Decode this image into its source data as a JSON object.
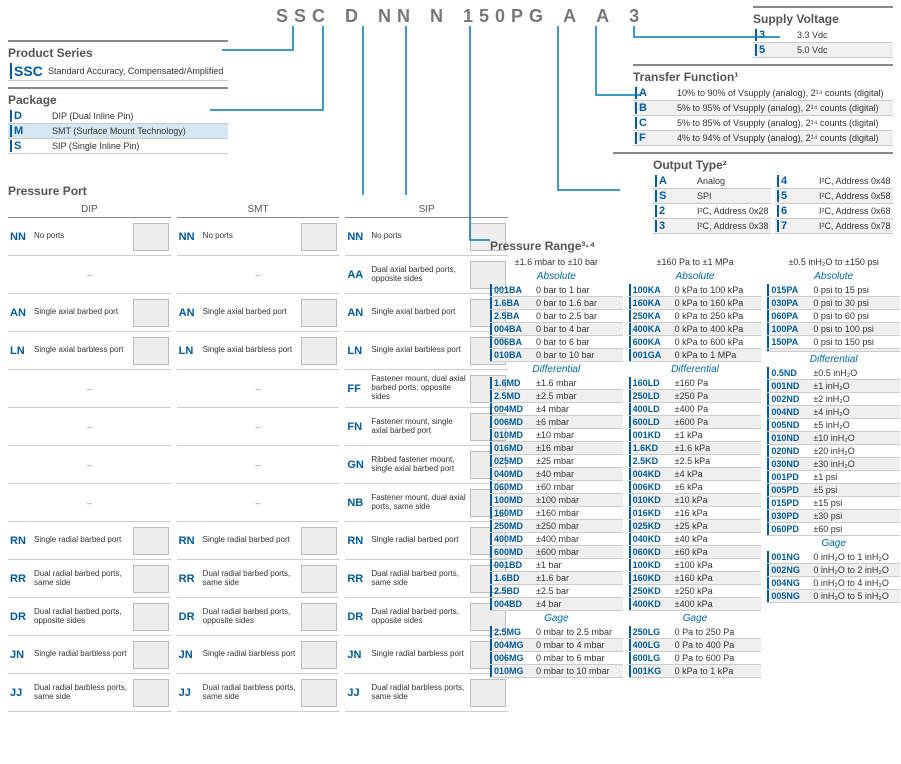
{
  "partNumberSegments": [
    "SSC",
    "D",
    "NN",
    "N",
    "150PG",
    "A",
    "A",
    "3"
  ],
  "supplyVoltage": {
    "title": "Supply Voltage",
    "rows": [
      {
        "code": "3",
        "desc": "3.3 Vdc"
      },
      {
        "code": "5",
        "desc": "5.0 Vdc"
      }
    ]
  },
  "productSeries": {
    "title": "Product Series",
    "rows": [
      {
        "code": "SSC",
        "desc": "Standard Accuracy, Compensated/Amplified"
      }
    ]
  },
  "package": {
    "title": "Package",
    "rows": [
      {
        "code": "D",
        "desc": "DIP (Dual Inline Pin)"
      },
      {
        "code": "M",
        "desc": "SMT (Surface Mount Technology)",
        "hl": true
      },
      {
        "code": "S",
        "desc": "SIP (Single Inline Pin)"
      }
    ]
  },
  "transferFunction": {
    "title": "Transfer Function¹",
    "rows": [
      {
        "code": "A",
        "desc": "10% to 90% of Vsupply (analog), 2¹⁴ counts (digital)"
      },
      {
        "code": "B",
        "desc": "5% to 95% of Vsupply (analog), 2¹⁴ counts (digital)"
      },
      {
        "code": "C",
        "desc": "5% to 85% of Vsupply (analog), 2¹⁴ counts (digital)"
      },
      {
        "code": "F",
        "desc": "4% to 94% of Vsupply (analog), 2¹⁴ counts (digital)"
      }
    ]
  },
  "outputType": {
    "title": "Output Type²",
    "left": [
      {
        "code": "A",
        "desc": "Analog"
      },
      {
        "code": "S",
        "desc": "SPI"
      },
      {
        "code": "2",
        "desc": "I²C, Address 0x28"
      },
      {
        "code": "3",
        "desc": "I²C, Address 0x38"
      }
    ],
    "right": [
      {
        "code": "4",
        "desc": "I²C, Address 0x48"
      },
      {
        "code": "5",
        "desc": "I²C, Address 0x58"
      },
      {
        "code": "6",
        "desc": "I²C, Address 0x68"
      },
      {
        "code": "7",
        "desc": "I²C, Address 0x78"
      }
    ]
  },
  "pressurePort": {
    "title": "Pressure Port",
    "colHeaders": [
      "DIP",
      "SMT",
      "SIP"
    ],
    "rows": [
      {
        "dip": {
          "code": "NN",
          "desc": "No ports"
        },
        "smt": {
          "code": "NN",
          "desc": "No ports"
        },
        "sip": {
          "code": "NN",
          "desc": "No ports"
        }
      },
      {
        "dip": null,
        "smt": null,
        "sip": {
          "code": "AA",
          "desc": "Dual axial barbed ports, opposite sides"
        }
      },
      {
        "dip": {
          "code": "AN",
          "desc": "Single axial barbed port"
        },
        "smt": {
          "code": "AN",
          "desc": "Single axial barbed port"
        },
        "sip": {
          "code": "AN",
          "desc": "Single axial barbed port"
        }
      },
      {
        "dip": {
          "code": "LN",
          "desc": "Single axial barbless port"
        },
        "smt": {
          "code": "LN",
          "desc": "Single axial barbless port"
        },
        "sip": {
          "code": "LN",
          "desc": "Single axial barbless port"
        }
      },
      {
        "dip": null,
        "smt": null,
        "sip": {
          "code": "FF",
          "desc": "Fastener mount, dual axial barbed ports, opposite sides"
        }
      },
      {
        "dip": null,
        "smt": null,
        "sip": {
          "code": "FN",
          "desc": "Fastener mount, single axial barbed port"
        }
      },
      {
        "dip": null,
        "smt": null,
        "sip": {
          "code": "GN",
          "desc": "Ribbed fastener mount, single axial barbed port"
        }
      },
      {
        "dip": null,
        "smt": null,
        "sip": {
          "code": "NB",
          "desc": "Fastener mount, dual axial ports, same side"
        }
      },
      {
        "dip": {
          "code": "RN",
          "desc": "Single radial barbed port"
        },
        "smt": {
          "code": "RN",
          "desc": "Single radial barbed port"
        },
        "sip": {
          "code": "RN",
          "desc": "Single radial barbed port"
        }
      },
      {
        "dip": {
          "code": "RR",
          "desc": "Dual radial barbed ports, same side"
        },
        "smt": {
          "code": "RR",
          "desc": "Dual radial barbed ports, same side"
        },
        "sip": {
          "code": "RR",
          "desc": "Dual radial barbed ports, same side"
        }
      },
      {
        "dip": {
          "code": "DR",
          "desc": "Dual radial barbed ports, opposite sides"
        },
        "smt": {
          "code": "DR",
          "desc": "Dual radial barbed ports, opposite sides"
        },
        "sip": {
          "code": "DR",
          "desc": "Dual radial barbed ports, opposite sides"
        }
      },
      {
        "dip": {
          "code": "JN",
          "desc": "Single radial barbless port"
        },
        "smt": {
          "code": "JN",
          "desc": "Single radial barbless port"
        },
        "sip": {
          "code": "JN",
          "desc": "Single radial barbless port"
        }
      },
      {
        "dip": {
          "code": "JJ",
          "desc": "Dual radial barbless ports, same side"
        },
        "smt": {
          "code": "JJ",
          "desc": "Dual radial barbless ports, same side"
        },
        "sip": {
          "code": "JJ",
          "desc": "Dual radial barbless ports, same side"
        }
      }
    ]
  },
  "pressureRange": {
    "title": "Pressure Range³·⁴",
    "columns": [
      {
        "rangeHeader": "±1.6 mbar to ±10 bar",
        "groups": [
          {
            "sub": "Absolute",
            "rows": [
              {
                "c": "001BA",
                "v": "0 bar to 1 bar"
              },
              {
                "c": "1.6BA",
                "v": "0 bar to 1.6 bar"
              },
              {
                "c": "2.5BA",
                "v": "0 bar to 2.5 bar"
              },
              {
                "c": "004BA",
                "v": "0 bar to 4 bar"
              },
              {
                "c": "006BA",
                "v": "0 bar to 6 bar"
              },
              {
                "c": "010BA",
                "v": "0 bar to 10 bar"
              }
            ]
          },
          {
            "sub": "Differential",
            "rows": [
              {
                "c": "1.6MD",
                "v": "±1.6 mbar"
              },
              {
                "c": "2.5MD",
                "v": "±2.5 mbar"
              },
              {
                "c": "004MD",
                "v": "±4 mbar"
              },
              {
                "c": "006MD",
                "v": "±6 mbar"
              },
              {
                "c": "010MD",
                "v": "±10 mbar"
              },
              {
                "c": "016MD",
                "v": "±16 mbar"
              },
              {
                "c": "025MD",
                "v": "±25 mbar"
              },
              {
                "c": "040MD",
                "v": "±40 mbar"
              },
              {
                "c": "060MD",
                "v": "±60 mbar"
              },
              {
                "c": "100MD",
                "v": "±100 mbar"
              },
              {
                "c": "160MD",
                "v": "±160 mbar"
              },
              {
                "c": "250MD",
                "v": "±250 mbar"
              },
              {
                "c": "400MD",
                "v": "±400 mbar"
              },
              {
                "c": "600MD",
                "v": "±600 mbar"
              },
              {
                "c": "001BD",
                "v": "±1 bar"
              },
              {
                "c": "1.6BD",
                "v": "±1.6 bar"
              },
              {
                "c": "2.5BD",
                "v": "±2.5 bar"
              },
              {
                "c": "004BD",
                "v": "±4 bar"
              }
            ]
          },
          {
            "sub": "Gage",
            "rows": [
              {
                "c": "2.5MG",
                "v": "0 mbar to 2.5 mbar"
              },
              {
                "c": "004MG",
                "v": "0 mbar to 4 mbar"
              },
              {
                "c": "006MG",
                "v": "0 mbar to 6 mbar"
              },
              {
                "c": "010MG",
                "v": "0 mbar to 10 mbar"
              }
            ]
          }
        ]
      },
      {
        "rangeHeader": "±160 Pa to ±1 MPa",
        "groups": [
          {
            "sub": "Absolute",
            "rows": [
              {
                "c": "100KA",
                "v": "0 kPa to 100 kPa"
              },
              {
                "c": "160KA",
                "v": "0 kPa to 160 kPa"
              },
              {
                "c": "250KA",
                "v": "0 kPa to 250 kPa"
              },
              {
                "c": "400KA",
                "v": "0 kPa to 400 kPa"
              },
              {
                "c": "600KA",
                "v": "0 kPa to 600 kPa"
              },
              {
                "c": "001GA",
                "v": "0 kPa to 1 MPa"
              }
            ]
          },
          {
            "sub": "Differential",
            "rows": [
              {
                "c": "160LD",
                "v": "±160 Pa"
              },
              {
                "c": "250LD",
                "v": "±250 Pa"
              },
              {
                "c": "400LD",
                "v": "±400 Pa"
              },
              {
                "c": "600LD",
                "v": "±600 Pa"
              },
              {
                "c": "001KD",
                "v": "±1 kPa"
              },
              {
                "c": "1.6KD",
                "v": "±1.6 kPa"
              },
              {
                "c": "2.5KD",
                "v": "±2.5 kPa"
              },
              {
                "c": "004KD",
                "v": "±4 kPa"
              },
              {
                "c": "006KD",
                "v": "±6 kPa"
              },
              {
                "c": "010KD",
                "v": "±10 kPa"
              },
              {
                "c": "016KD",
                "v": "±16 kPa"
              },
              {
                "c": "025KD",
                "v": "±25 kPa"
              },
              {
                "c": "040KD",
                "v": "±40 kPa"
              },
              {
                "c": "060KD",
                "v": "±60 kPa"
              },
              {
                "c": "100KD",
                "v": "±100 kPa"
              },
              {
                "c": "160KD",
                "v": "±160 kPa"
              },
              {
                "c": "250KD",
                "v": "±250 kPa"
              },
              {
                "c": "400KD",
                "v": "±400 kPa"
              }
            ]
          },
          {
            "sub": "Gage",
            "rows": [
              {
                "c": "250LG",
                "v": "0 Pa to 250 Pa"
              },
              {
                "c": "400LG",
                "v": "0 Pa to 400 Pa"
              },
              {
                "c": "600LG",
                "v": "0 Pa to 600 Pa"
              },
              {
                "c": "001KG",
                "v": "0 kPa to 1 kPa"
              }
            ]
          }
        ]
      },
      {
        "rangeHeader": "±0.5 inH₂O to ±150 psi",
        "groups": [
          {
            "sub": "Absolute",
            "rows": [
              {
                "c": "015PA",
                "v": "0 psi to 15 psi"
              },
              {
                "c": "030PA",
                "v": "0 psi to 30 psi"
              },
              {
                "c": "060PA",
                "v": "0 psi to 60 psi"
              },
              {
                "c": "100PA",
                "v": "0 psi to 100 psi"
              },
              {
                "c": "150PA",
                "v": "0 psi to 150 psi"
              },
              {
                "c": "",
                "v": ""
              }
            ]
          },
          {
            "sub": "Differential",
            "rows": [
              {
                "c": "0.5ND",
                "v": "±0.5 inH₂O"
              },
              {
                "c": "001ND",
                "v": "±1 inH₂O"
              },
              {
                "c": "002ND",
                "v": "±2 inH₂O"
              },
              {
                "c": "004ND",
                "v": "±4 inH₂O"
              },
              {
                "c": "005ND",
                "v": "±5 inH₂O"
              },
              {
                "c": "010ND",
                "v": "±10 inH₂O"
              },
              {
                "c": "020ND",
                "v": "±20 inH₂O"
              },
              {
                "c": "030ND",
                "v": "±30 inH₂O"
              },
              {
                "c": "001PD",
                "v": "±1 psi"
              },
              {
                "c": "005PD",
                "v": "±5 psi"
              },
              {
                "c": "015PD",
                "v": "±15 psi"
              },
              {
                "c": "030PD",
                "v": "±30 psi"
              },
              {
                "c": "060PD",
                "v": "±60 psi"
              }
            ]
          },
          {
            "sub": "Gage",
            "rows": [
              {
                "c": "001NG",
                "v": "0 inH₂O to 1 inH₂O"
              },
              {
                "c": "002NG",
                "v": "0 inH₂O to 2 inH₂O"
              },
              {
                "c": "004NG",
                "v": "0 inH₂O to 4 inH₂O"
              },
              {
                "c": "005NG",
                "v": "0 inH₂O to 5 inH₂O"
              }
            ]
          }
        ]
      }
    ]
  },
  "colors": {
    "accent": "#005a9c",
    "hl": "#d5e8f2",
    "gridline": "#c9c9c9",
    "altRow": "#efefef"
  }
}
